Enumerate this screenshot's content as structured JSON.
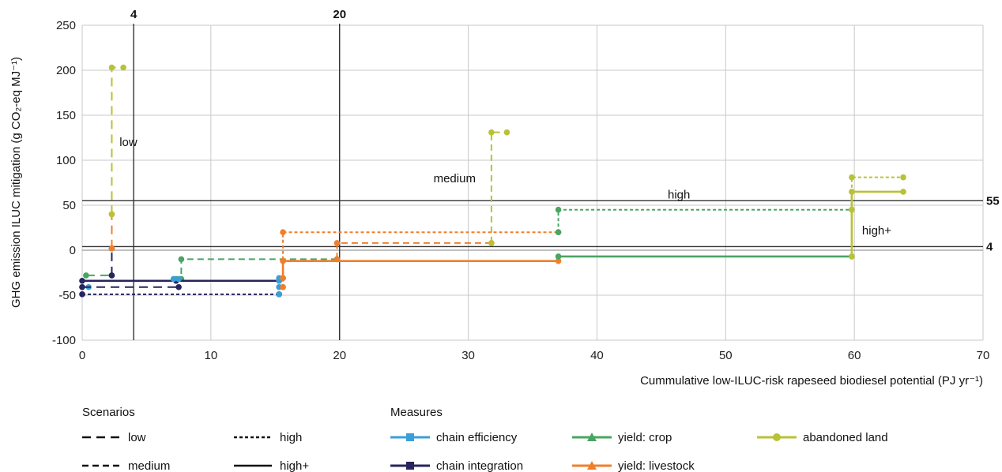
{
  "chart_data": {
    "type": "line",
    "xlabel": "Cummulative low-ILUC-risk rapeseed biodiesel potential (PJ yr⁻¹)",
    "ylabel": "GHG emission ILUC mitigation (g CO₂-eq MJ⁻¹)",
    "xlim": [
      0,
      70
    ],
    "ylim": [
      -100,
      250
    ],
    "x_ticks": [
      0,
      10,
      20,
      30,
      40,
      50,
      60,
      70
    ],
    "y_ticks": [
      -100,
      -50,
      0,
      50,
      100,
      150,
      200,
      250
    ],
    "grid": true,
    "reference_lines": {
      "vertical": [
        {
          "x": 4,
          "label": "4"
        },
        {
          "x": 20,
          "label": "20"
        }
      ],
      "horizontal": [
        {
          "y": 55,
          "label": "55"
        },
        {
          "y": 4,
          "label": "4"
        }
      ]
    },
    "annotations": [
      {
        "text": "low",
        "x": 2.9,
        "y": 120
      },
      {
        "text": "medium",
        "x": 27.3,
        "y": 80
      },
      {
        "text": "high",
        "x": 45.5,
        "y": 62
      },
      {
        "text": "high+",
        "x": 60.6,
        "y": 22
      }
    ],
    "colors": {
      "chain efficiency": "#3a9fd8",
      "chain integration": "#27245e",
      "yield: crop": "#4aa562",
      "yield: livestock": "#f07f2b",
      "abandoned land": "#b8c234"
    },
    "series": [
      {
        "scenario": "low",
        "dash": "long",
        "segments": [
          {
            "measure": "chain efficiency",
            "points": [
              [
                0,
                -41
              ],
              [
                0.5,
                -41
              ]
            ]
          },
          {
            "measure": "chain integration",
            "points": [
              [
                0,
                -41
              ],
              [
                7.5,
                -41
              ]
            ]
          },
          {
            "measure": "yield: crop",
            "points": [
              [
                0.3,
                -28
              ],
              [
                2.3,
                -28
              ]
            ]
          },
          {
            "measure": "chain integration",
            "points": [
              [
                2.3,
                -28
              ],
              [
                2.3,
                2
              ]
            ]
          },
          {
            "measure": "yield: livestock",
            "points": [
              [
                2.3,
                2
              ],
              [
                2.3,
                40
              ]
            ]
          },
          {
            "measure": "abandoned land",
            "points": [
              [
                2.3,
                40
              ],
              [
                2.3,
                203
              ],
              [
                3.2,
                203
              ]
            ]
          }
        ]
      },
      {
        "scenario": "medium",
        "dash": "medium",
        "segments": [
          {
            "measure": "yield: crop",
            "points": [
              [
                7.3,
                -32
              ],
              [
                7.7,
                -32
              ],
              [
                7.7,
                -10
              ],
              [
                19.8,
                -10
              ]
            ]
          },
          {
            "measure": "yield: livestock",
            "points": [
              [
                19.8,
                -10
              ],
              [
                19.8,
                8
              ],
              [
                31.8,
                8
              ]
            ]
          },
          {
            "measure": "abandoned land",
            "points": [
              [
                31.8,
                8
              ],
              [
                31.8,
                131
              ],
              [
                33.0,
                131
              ]
            ]
          }
        ]
      },
      {
        "scenario": "high",
        "dash": "short",
        "segments": [
          {
            "measure": "chain integration",
            "points": [
              [
                0,
                -49
              ],
              [
                15.3,
                -49
              ]
            ]
          },
          {
            "measure": "chain efficiency",
            "points": [
              [
                15.3,
                -49
              ],
              [
                15.3,
                -41
              ],
              [
                15.6,
                -41
              ]
            ]
          },
          {
            "measure": "yield: livestock",
            "points": [
              [
                15.6,
                -41
              ],
              [
                15.6,
                20
              ],
              [
                37.0,
                20
              ]
            ]
          },
          {
            "measure": "yield: crop",
            "points": [
              [
                37.0,
                20
              ],
              [
                37.0,
                45
              ],
              [
                59.8,
                45
              ]
            ]
          },
          {
            "measure": "abandoned land",
            "points": [
              [
                59.8,
                45
              ],
              [
                59.8,
                81
              ],
              [
                63.8,
                81
              ]
            ]
          }
        ]
      },
      {
        "scenario": "high+",
        "dash": "solid",
        "segments": [
          {
            "measure": "chain integration",
            "points": [
              [
                0,
                -34
              ],
              [
                7.3,
                -34
              ],
              [
                15.3,
                -34
              ]
            ]
          },
          {
            "measure": "chain efficiency",
            "points": [
              [
                7.1,
                -32
              ],
              [
                7.5,
                -32
              ]
            ]
          },
          {
            "measure": "chain efficiency",
            "points": [
              [
                15.3,
                -34
              ],
              [
                15.3,
                -31
              ],
              [
                15.6,
                -31
              ]
            ]
          },
          {
            "measure": "yield: livestock",
            "points": [
              [
                15.6,
                -31
              ],
              [
                15.6,
                -12
              ],
              [
                37.0,
                -12
              ]
            ]
          },
          {
            "measure": "yield: crop",
            "points": [
              [
                37.0,
                -7
              ],
              [
                59.8,
                -7
              ]
            ]
          },
          {
            "measure": "abandoned land",
            "points": [
              [
                59.8,
                -7
              ],
              [
                59.8,
                65
              ],
              [
                63.8,
                65
              ]
            ]
          }
        ]
      }
    ],
    "legend": {
      "scenarios_title": "Scenarios",
      "measures_title": "Measures",
      "scenarios": [
        {
          "label": "low",
          "dash": "long"
        },
        {
          "label": "high",
          "dash": "short"
        },
        {
          "label": "medium",
          "dash": "medium"
        },
        {
          "label": "high+",
          "dash": "solid"
        }
      ],
      "measures": [
        {
          "label": "chain efficiency",
          "marker": "square"
        },
        {
          "label": "yield: crop",
          "marker": "triangle"
        },
        {
          "label": "abandoned land",
          "marker": "circle"
        },
        {
          "label": "chain integration",
          "marker": "square"
        },
        {
          "label": "yield: livestock",
          "marker": "triangle"
        }
      ]
    }
  }
}
